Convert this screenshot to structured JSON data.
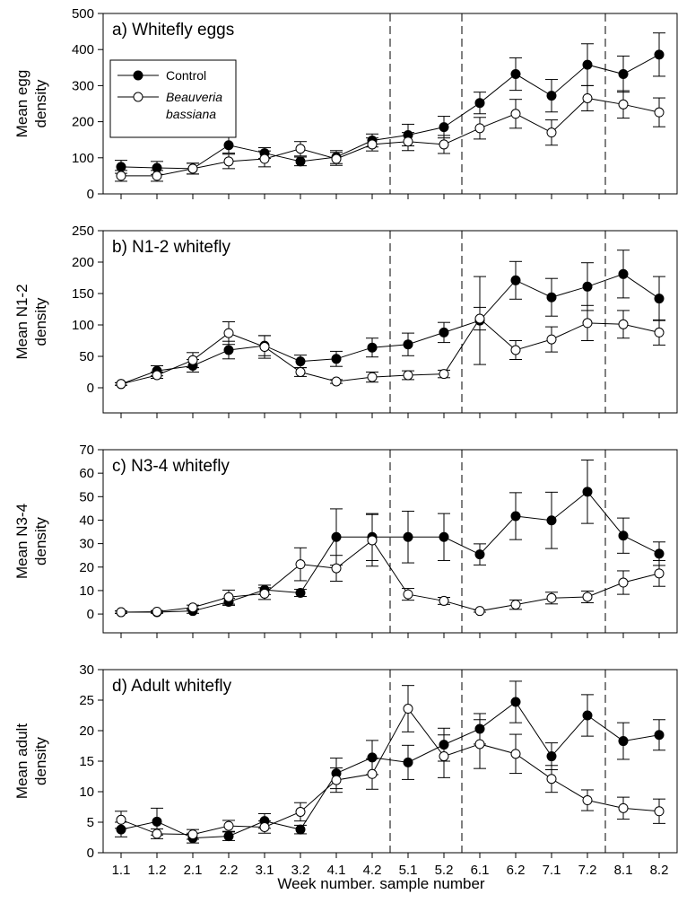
{
  "chart_data": {
    "type": "line",
    "xlabel": "Week number. sample number",
    "x": [
      "1.1",
      "1.2",
      "2.1",
      "2.2",
      "3.1",
      "3.2",
      "4.1",
      "4.2",
      "5.1",
      "5.2",
      "6.1",
      "6.2",
      "7.1",
      "7.2",
      "8.1",
      "8.2"
    ],
    "vertical_dashed_lines_after": [
      "4.2",
      "5.2",
      "7.2"
    ],
    "legend": {
      "placement": "top-left of panel a",
      "entries": [
        {
          "label": "Control",
          "marker": "filled-circle"
        },
        {
          "label_lines": [
            "Beauveria",
            "bassiana"
          ],
          "marker": "open-circle",
          "italic": true
        }
      ]
    },
    "panels": [
      {
        "title": "a) Whitefly eggs",
        "ylabel_lines": [
          "Mean egg",
          "density"
        ],
        "ylim": [
          0,
          500
        ],
        "yticks": [
          0,
          100,
          200,
          300,
          400,
          500
        ],
        "series": [
          {
            "name": "Control",
            "marker": "filled",
            "values": [
              75,
              72,
              70,
              135,
              113,
              90,
              102,
              148,
              163,
              185,
              252,
              332,
              272,
              358,
              332,
              386
            ],
            "errors": [
              18,
              18,
              15,
              22,
              15,
              12,
              18,
              18,
              30,
              30,
              30,
              45,
              45,
              58,
              50,
              60
            ]
          },
          {
            "name": "Beauveria bassiana",
            "marker": "open",
            "values": [
              50,
              50,
              70,
              90,
              97,
              125,
              97,
              137,
              145,
              137,
              182,
              222,
              170,
              265,
              248,
              226
            ],
            "errors": [
              15,
              15,
              15,
              20,
              22,
              20,
              18,
              18,
              25,
              25,
              30,
              40,
              35,
              35,
              38,
              40
            ]
          }
        ]
      },
      {
        "title": "b) N1-2 whitefly",
        "ylabel_lines": [
          "Mean N1-2",
          "density"
        ],
        "ylim": [
          -40,
          250
        ],
        "yticks": [
          0,
          50,
          100,
          150,
          200,
          250
        ],
        "series": [
          {
            "name": "Control",
            "marker": "filled",
            "values": [
              6,
              27,
              35,
              60,
              67,
              42,
              46,
              64,
              69,
              88,
              107,
              171,
              144,
              161,
              181,
              142
            ],
            "errors": [
              2,
              8,
              10,
              14,
              16,
              10,
              12,
              15,
              18,
              16,
              70,
              30,
              30,
              38,
              38,
              35
            ]
          },
          {
            "name": "Beauveria bassiana",
            "marker": "open",
            "values": [
              6,
              20,
              44,
              87,
              65,
              25,
              10,
              17,
              20,
              22,
              110,
              60,
              77,
              103,
              101,
              88
            ],
            "errors": [
              2,
              5,
              12,
              18,
              18,
              7,
              3,
              8,
              7,
              6,
              18,
              15,
              20,
              28,
              22,
              20
            ]
          }
        ]
      },
      {
        "title": "c) N3-4 whitefly",
        "ylabel_lines": [
          "Mean N3-4",
          "density"
        ],
        "ylim": [
          -8,
          70
        ],
        "yticks": [
          0,
          10,
          20,
          30,
          40,
          50,
          60,
          70
        ],
        "series": [
          {
            "name": "Control",
            "marker": "filled",
            "values": [
              0.8,
              0.8,
              1.3,
              5.2,
              10.3,
              9.0,
              32.8,
              32.8,
              32.8,
              32.8,
              25.4,
              41.7,
              39.9,
              52.1,
              33.4,
              25.7
            ],
            "errors": [
              0.5,
              0.5,
              1,
              1.5,
              2,
              1.5,
              12,
              10,
              11,
              10,
              4.5,
              10,
              12,
              13.5,
              7.5,
              5
            ]
          },
          {
            "name": "Beauveria bassiana",
            "marker": "open",
            "values": [
              0.8,
              1.0,
              2.8,
              7.2,
              8.7,
              21.2,
              19.5,
              31.4,
              8.4,
              5.6,
              1.3,
              4.0,
              6.8,
              7.3,
              13.4,
              17.3
            ],
            "errors": [
              0.5,
              0.5,
              1,
              3,
              2.5,
              7,
              5.5,
              11,
              2.5,
              1.5,
              0.5,
              2,
              2.5,
              2.5,
              5,
              5.5
            ]
          }
        ]
      },
      {
        "title": "d) Adult whitefly",
        "ylabel_lines": [
          "Mean adult",
          "density"
        ],
        "ylim": [
          0,
          30
        ],
        "yticks": [
          0,
          5,
          10,
          15,
          20,
          25,
          30
        ],
        "series": [
          {
            "name": "Control",
            "marker": "filled",
            "values": [
              3.8,
              5.1,
              2.4,
              2.7,
              5.2,
              3.8,
              13.0,
              15.6,
              14.8,
              17.7,
              20.3,
              24.7,
              15.8,
              22.5,
              18.3,
              19.3
            ],
            "errors": [
              1.2,
              2.2,
              0.8,
              0.7,
              1.2,
              0.7,
              2.5,
              2.8,
              2.8,
              2.7,
              2.5,
              3.4,
              2.2,
              3.4,
              3.0,
              2.5
            ]
          },
          {
            "name": "Beauveria bassiana",
            "marker": "open",
            "values": [
              5.4,
              3.1,
              3.0,
              4.4,
              4.2,
              6.7,
              11.9,
              12.9,
              23.6,
              15.8,
              17.8,
              16.2,
              12.1,
              8.6,
              7.3,
              6.8
            ],
            "errors": [
              1.4,
              0.8,
              0.8,
              0.9,
              1.0,
              1.5,
              2.0,
              2.5,
              3.8,
              3.5,
              4.0,
              3.2,
              2.2,
              1.7,
              1.8,
              2.0
            ]
          }
        ]
      }
    ]
  }
}
